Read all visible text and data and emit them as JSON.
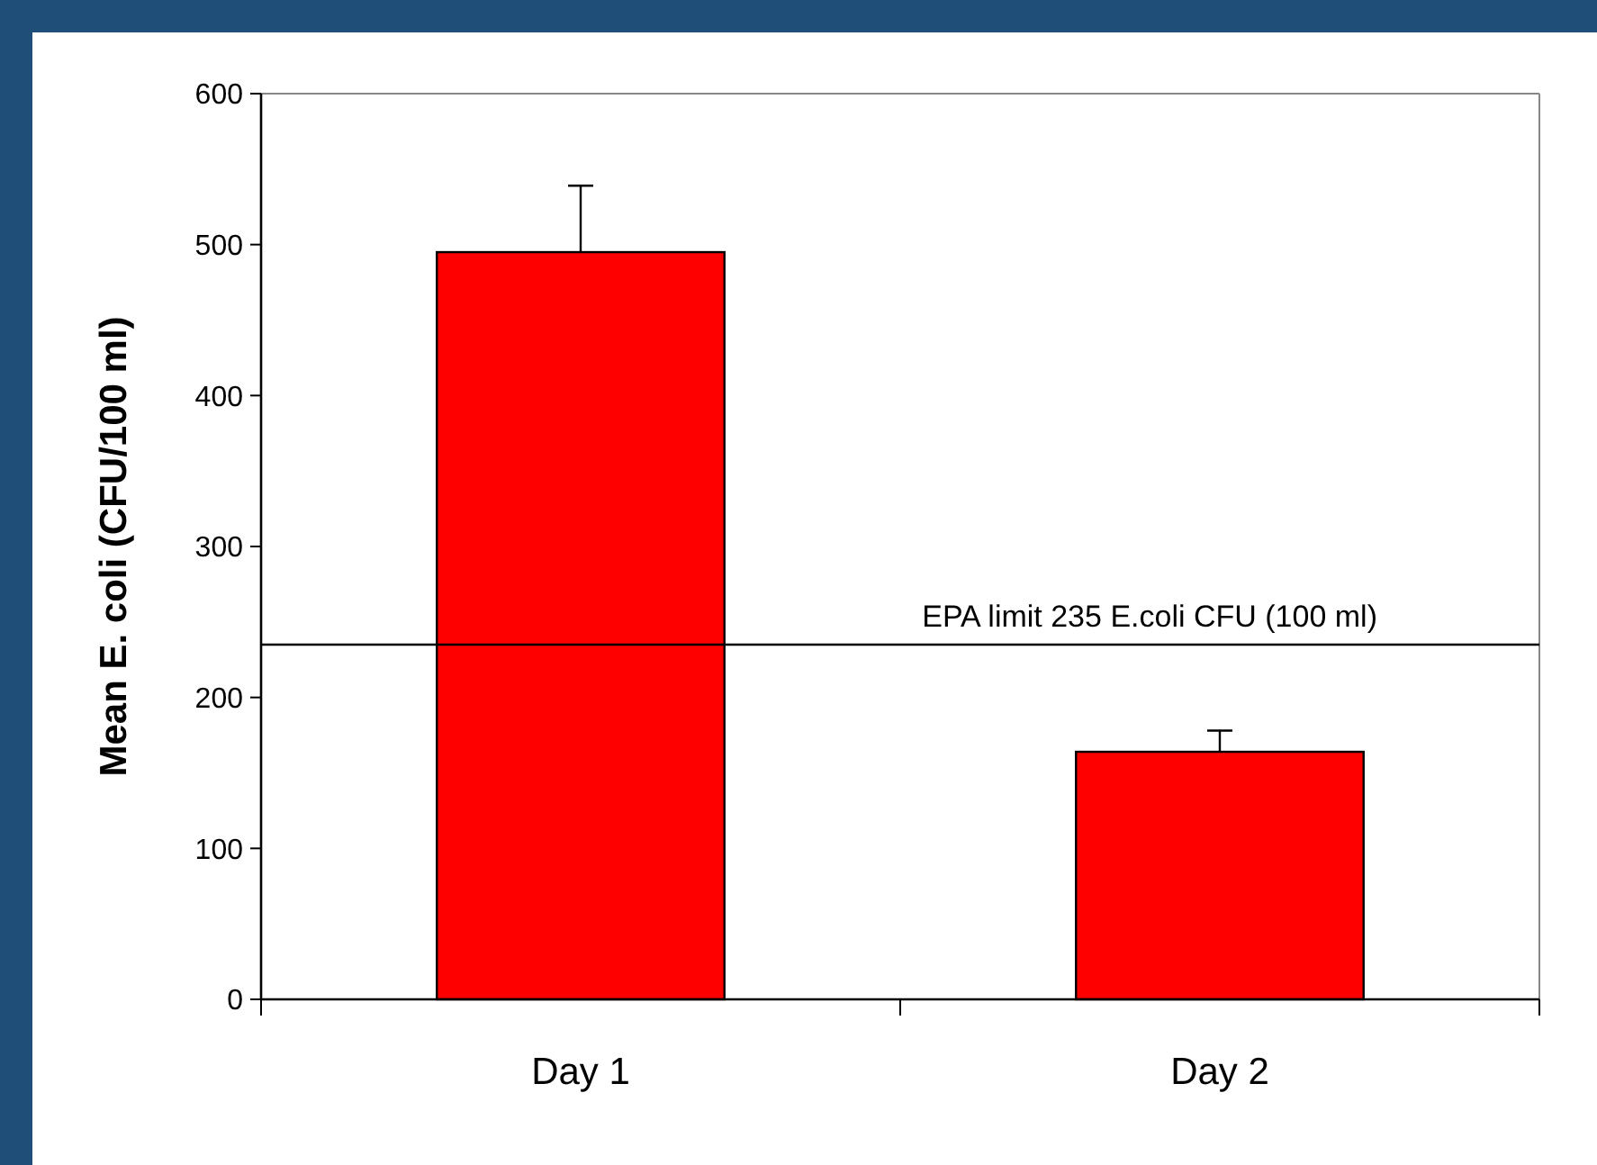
{
  "chart_data": {
    "type": "bar",
    "ylabel": "Mean E. coli (CFU/100 ml)",
    "categories": [
      "Day 1",
      "Day 2"
    ],
    "values": [
      495,
      164
    ],
    "errors": [
      [
        495,
        539
      ],
      [
        164,
        178
      ]
    ],
    "color": "#ff0000",
    "ylim": [
      0,
      600
    ],
    "yticks": [
      0,
      100,
      200,
      300,
      400,
      500,
      600
    ],
    "grid": false,
    "legend": false,
    "ref_lines": [
      {
        "axis": "y",
        "value": 235,
        "label": "EPA limit 235 E.coli CFU (100 ml)",
        "color": "#000000"
      }
    ]
  }
}
